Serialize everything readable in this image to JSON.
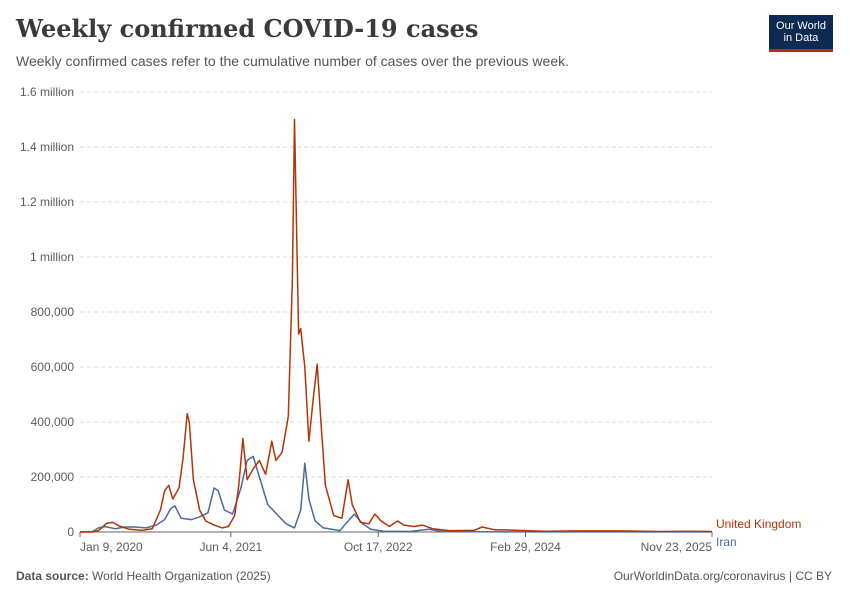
{
  "header": {
    "title": "Weekly confirmed COVID-19 cases",
    "subtitle": "Weekly confirmed cases refer to the cumulative number of cases over the previous week.",
    "logo_line1": "Our World",
    "logo_line2": "in Data"
  },
  "footer": {
    "source_label": "Data source:",
    "source_text": "World Health Organization (2025)",
    "url": "OurWorldinData.org/coronavirus | CC BY"
  },
  "colors": {
    "uk": "#b13507",
    "iran": "#4c6a9c",
    "grid": "#dddddd",
    "axis": "#666666"
  },
  "chart_data": {
    "type": "line",
    "title": "Weekly confirmed COVID-19 cases",
    "subtitle": "Weekly confirmed cases refer to the cumulative number of cases over the previous week.",
    "xlabel": "",
    "ylabel": "",
    "x_range": [
      "2020-01-09",
      "2025-11-23"
    ],
    "ylim": [
      0,
      1600000
    ],
    "y_ticks": [
      {
        "value": 0,
        "label": "0"
      },
      {
        "value": 200000,
        "label": "200,000"
      },
      {
        "value": 400000,
        "label": "400,000"
      },
      {
        "value": 600000,
        "label": "600,000"
      },
      {
        "value": 800000,
        "label": "800,000"
      },
      {
        "value": 1000000,
        "label": "1 million"
      },
      {
        "value": 1200000,
        "label": "1.2 million"
      },
      {
        "value": 1400000,
        "label": "1.4 million"
      },
      {
        "value": 1600000,
        "label": "1.6 million"
      }
    ],
    "x_ticks": [
      {
        "date": "2020-01-09",
        "label": "Jan 9, 2020"
      },
      {
        "date": "2021-06-04",
        "label": "Jun 4, 2021"
      },
      {
        "date": "2022-10-17",
        "label": "Oct 17, 2022"
      },
      {
        "date": "2024-02-29",
        "label": "Feb 29, 2024"
      },
      {
        "date": "2025-11-23",
        "label": "Nov 23, 2025"
      }
    ],
    "grid": true,
    "legend": "inline-right",
    "series": [
      {
        "name": "United Kingdom",
        "color": "#b13507",
        "points": [
          [
            "2020-01-09",
            0
          ],
          [
            "2020-02-20",
            0
          ],
          [
            "2020-03-12",
            5000
          ],
          [
            "2020-04-09",
            32000
          ],
          [
            "2020-04-30",
            35000
          ],
          [
            "2020-05-21",
            22000
          ],
          [
            "2020-06-25",
            10000
          ],
          [
            "2020-08-06",
            6000
          ],
          [
            "2020-09-10",
            12000
          ],
          [
            "2020-09-24",
            45000
          ],
          [
            "2020-10-08",
            80000
          ],
          [
            "2020-10-22",
            150000
          ],
          [
            "2020-11-05",
            170000
          ],
          [
            "2020-11-19",
            120000
          ],
          [
            "2020-12-10",
            160000
          ],
          [
            "2020-12-24",
            270000
          ],
          [
            "2021-01-07",
            430000
          ],
          [
            "2021-01-14",
            400000
          ],
          [
            "2021-01-28",
            190000
          ],
          [
            "2021-02-18",
            80000
          ],
          [
            "2021-03-11",
            40000
          ],
          [
            "2021-04-08",
            25000
          ],
          [
            "2021-05-06",
            15000
          ],
          [
            "2021-05-27",
            20000
          ],
          [
            "2021-06-17",
            60000
          ],
          [
            "2021-07-01",
            170000
          ],
          [
            "2021-07-15",
            340000
          ],
          [
            "2021-07-29",
            190000
          ],
          [
            "2021-08-19",
            230000
          ],
          [
            "2021-09-09",
            260000
          ],
          [
            "2021-09-30",
            210000
          ],
          [
            "2021-10-21",
            330000
          ],
          [
            "2021-11-04",
            260000
          ],
          [
            "2021-11-25",
            290000
          ],
          [
            "2021-12-16",
            420000
          ],
          [
            "2021-12-30",
            920000
          ],
          [
            "2022-01-06",
            1500000
          ],
          [
            "2022-01-13",
            1100000
          ],
          [
            "2022-01-20",
            720000
          ],
          [
            "2022-01-27",
            740000
          ],
          [
            "2022-02-10",
            600000
          ],
          [
            "2022-02-24",
            330000
          ],
          [
            "2022-03-10",
            480000
          ],
          [
            "2022-03-24",
            610000
          ],
          [
            "2022-04-07",
            380000
          ],
          [
            "2022-04-21",
            170000
          ],
          [
            "2022-05-19",
            60000
          ],
          [
            "2022-06-16",
            50000
          ],
          [
            "2022-07-07",
            190000
          ],
          [
            "2022-07-21",
            100000
          ],
          [
            "2022-08-18",
            35000
          ],
          [
            "2022-09-15",
            30000
          ],
          [
            "2022-10-06",
            65000
          ],
          [
            "2022-10-27",
            40000
          ],
          [
            "2022-11-24",
            20000
          ],
          [
            "2022-12-22",
            40000
          ],
          [
            "2023-01-12",
            25000
          ],
          [
            "2023-02-16",
            20000
          ],
          [
            "2023-03-16",
            25000
          ],
          [
            "2023-04-20",
            12000
          ],
          [
            "2023-06-15",
            5000
          ],
          [
            "2023-09-07",
            6000
          ],
          [
            "2023-10-05",
            18000
          ],
          [
            "2023-11-16",
            8000
          ],
          [
            "2024-01-11",
            7000
          ],
          [
            "2024-05-02",
            3000
          ],
          [
            "2024-09-05",
            4000
          ],
          [
            "2025-01-09",
            4000
          ],
          [
            "2025-06-05",
            2000
          ],
          [
            "2025-09-04",
            3000
          ],
          [
            "2025-11-23",
            2000
          ]
        ]
      },
      {
        "name": "Iran",
        "color": "#4c6a9c",
        "points": [
          [
            "2020-01-09",
            0
          ],
          [
            "2020-02-20",
            2000
          ],
          [
            "2020-03-12",
            15000
          ],
          [
            "2020-04-02",
            20000
          ],
          [
            "2020-05-07",
            12000
          ],
          [
            "2020-06-11",
            18000
          ],
          [
            "2020-07-09",
            18000
          ],
          [
            "2020-08-20",
            15000
          ],
          [
            "2020-09-24",
            25000
          ],
          [
            "2020-10-22",
            45000
          ],
          [
            "2020-11-12",
            85000
          ],
          [
            "2020-11-26",
            95000
          ],
          [
            "2020-12-17",
            50000
          ],
          [
            "2021-01-21",
            45000
          ],
          [
            "2021-02-18",
            55000
          ],
          [
            "2021-03-18",
            70000
          ],
          [
            "2021-04-08",
            160000
          ],
          [
            "2021-04-22",
            150000
          ],
          [
            "2021-05-13",
            80000
          ],
          [
            "2021-06-10",
            65000
          ],
          [
            "2021-07-08",
            160000
          ],
          [
            "2021-07-29",
            260000
          ],
          [
            "2021-08-19",
            275000
          ],
          [
            "2021-09-09",
            200000
          ],
          [
            "2021-10-07",
            100000
          ],
          [
            "2021-11-11",
            60000
          ],
          [
            "2021-12-09",
            30000
          ],
          [
            "2022-01-06",
            15000
          ],
          [
            "2022-01-27",
            80000
          ],
          [
            "2022-02-10",
            250000
          ],
          [
            "2022-02-24",
            120000
          ],
          [
            "2022-03-17",
            40000
          ],
          [
            "2022-04-14",
            15000
          ],
          [
            "2022-06-09",
            5000
          ],
          [
            "2022-07-07",
            40000
          ],
          [
            "2022-07-28",
            65000
          ],
          [
            "2022-08-25",
            30000
          ],
          [
            "2022-09-22",
            10000
          ],
          [
            "2022-11-03",
            3000
          ],
          [
            "2023-02-02",
            2000
          ],
          [
            "2023-04-06",
            10000
          ],
          [
            "2023-05-18",
            3000
          ],
          [
            "2023-09-07",
            1000
          ],
          [
            "2024-03-07",
            500
          ],
          [
            "2025-11-23",
            300
          ]
        ]
      }
    ]
  }
}
